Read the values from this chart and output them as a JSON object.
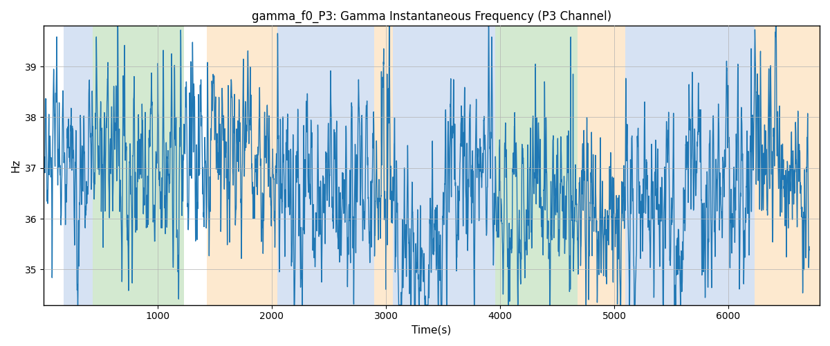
{
  "title": "gamma_f0_P3: Gamma Instantaneous Frequency (P3 Channel)",
  "xlabel": "Time(s)",
  "ylabel": "Hz",
  "xlim": [
    0,
    6800
  ],
  "ylim": [
    34.3,
    39.8
  ],
  "yticks": [
    35,
    36,
    37,
    38,
    39
  ],
  "xticks": [
    1000,
    2000,
    3000,
    4000,
    5000,
    6000
  ],
  "line_color": "#1f77b4",
  "line_width": 1.0,
  "grid_color": "#b0b0b0",
  "bg_color": "white",
  "bands": [
    {
      "xmin": 175,
      "xmax": 430,
      "color": "#aec6e8",
      "alpha": 0.5
    },
    {
      "xmin": 430,
      "xmax": 1230,
      "color": "#a8d5a2",
      "alpha": 0.5
    },
    {
      "xmin": 1430,
      "xmax": 2050,
      "color": "#fcd5a0",
      "alpha": 0.5
    },
    {
      "xmin": 2050,
      "xmax": 2900,
      "color": "#aec6e8",
      "alpha": 0.5
    },
    {
      "xmin": 2900,
      "xmax": 3060,
      "color": "#fcd5a0",
      "alpha": 0.5
    },
    {
      "xmin": 3060,
      "xmax": 3820,
      "color": "#aec6e8",
      "alpha": 0.5
    },
    {
      "xmin": 3820,
      "xmax": 3960,
      "color": "#aec6e8",
      "alpha": 0.5
    },
    {
      "xmin": 3960,
      "xmax": 4680,
      "color": "#a8d5a2",
      "alpha": 0.5
    },
    {
      "xmin": 4680,
      "xmax": 5100,
      "color": "#fcd5a0",
      "alpha": 0.5
    },
    {
      "xmin": 5100,
      "xmax": 6060,
      "color": "#aec6e8",
      "alpha": 0.5
    },
    {
      "xmin": 6060,
      "xmax": 6230,
      "color": "#aec6e8",
      "alpha": 0.5
    },
    {
      "xmin": 6230,
      "xmax": 6800,
      "color": "#fcd5a0",
      "alpha": 0.5
    }
  ],
  "seed": 17,
  "n_points": 6700,
  "base_freq": 36.7
}
